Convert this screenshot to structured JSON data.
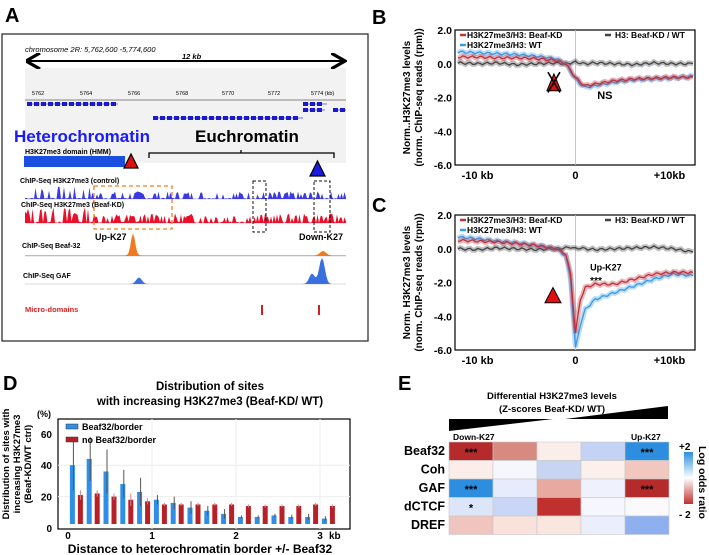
{
  "panels": {
    "a": "A",
    "b": "B",
    "c": "C",
    "d": "D",
    "e": "E"
  },
  "panel_a": {
    "region": "chromosome 2R: 5,762,600 -5,774,600",
    "span": "12 kb",
    "ticks": [
      "5762",
      "5764",
      "5766",
      "5768",
      "5770",
      "5772",
      "5774 (kb)"
    ],
    "heterochromatin": "Heterochromatin",
    "euchromatin": "Euchromatin",
    "domain_track": "H3K27me3 domain (HMM)",
    "tracks": [
      "ChIP-Seq H3K27me3 (control)",
      "ChIP-Seq H3K27me3 (Beaf-KD)",
      "ChIP-Seq Beaf-32",
      "ChIP-Seq GAF"
    ],
    "up_label": "Up-K27",
    "down_label": "Down-K27",
    "micro_domains": "Micro-domains",
    "colors": {
      "heterochromatin": "#1a1aff",
      "control": "#3a3ae0",
      "beaf_kd": "#e8102a",
      "beaf32": "#f07a20",
      "gaf": "#3a6fe0",
      "micro": "#e02020"
    }
  },
  "chart_data": [
    {
      "id": "B",
      "type": "line",
      "ylabel_1": "Norm..H3K27me3 levels",
      "ylabel_2": "(norm. ChIP-seq reads (rpm))",
      "yticks": [
        "2.0",
        "0.0",
        "-2.0",
        "-4.0",
        "-6.0"
      ],
      "ylim": [
        -6,
        2
      ],
      "xticks": [
        "-10 kb",
        "0",
        "+10kb"
      ],
      "xlim": [
        -12.3,
        12.2
      ],
      "annotation": "NS",
      "x": [
        -12,
        -10,
        -8,
        -6,
        -4,
        -2,
        -1,
        0,
        0.5,
        1,
        2,
        4,
        6,
        8,
        10,
        12
      ],
      "series": [
        {
          "name": "H3K27me3/H3: Beaf-KD",
          "color": "#c0303a",
          "values": [
            0.4,
            0.4,
            0.35,
            0.35,
            0.3,
            0.2,
            0,
            -0.8,
            -1.1,
            -1.3,
            -1.2,
            -1.0,
            -0.9,
            -0.85,
            -0.8,
            -0.8
          ]
        },
        {
          "name": "H3K27me3/H3: WT",
          "color": "#3a9ae8",
          "values": [
            0.7,
            0.65,
            0.6,
            0.55,
            0.45,
            0.3,
            0,
            -0.9,
            -1.2,
            -1.4,
            -1.3,
            -1.1,
            -0.95,
            -0.9,
            -0.85,
            -0.75
          ]
        },
        {
          "name": "H3: Beaf-KD / WT",
          "color": "#444444",
          "values": [
            0.05,
            0.0,
            0.05,
            -0.05,
            0.0,
            0.05,
            0.0,
            0.1,
            0.05,
            0.0,
            0.05,
            0.0,
            -0.05,
            0.05,
            0.0,
            0.0
          ]
        }
      ]
    },
    {
      "id": "C",
      "type": "line",
      "ylabel_1": "Norm. H3K27me3 levels",
      "ylabel_2": "(norm. ChIP-seq reads (rpm))",
      "yticks": [
        "2.0",
        "0.0",
        "-2.0",
        "-4.0",
        "-6.0"
      ],
      "ylim": [
        -6,
        2
      ],
      "xticks": [
        "-10 kb",
        "0",
        "+10kb"
      ],
      "xlim": [
        -12.3,
        12.2
      ],
      "annotation": "Up-K27",
      "significance": "***",
      "x": [
        -12,
        -10,
        -8,
        -6,
        -4,
        -2,
        -1,
        -0.5,
        0,
        0.5,
        1,
        2,
        4,
        6,
        8,
        10,
        12
      ],
      "series": [
        {
          "name": "H3K27me3/H3: Beaf-KD",
          "color": "#c0303a",
          "values": [
            0.5,
            0.45,
            0.4,
            0.3,
            0.2,
            0.0,
            -0.3,
            -1.5,
            -5.0,
            -3.0,
            -2.3,
            -2.1,
            -2.1,
            -1.8,
            -1.5,
            -1.4,
            -1.4
          ]
        },
        {
          "name": "H3K27me3/H3: WT",
          "color": "#3a9ae8",
          "values": [
            0.7,
            0.6,
            0.45,
            0.35,
            0.2,
            0.0,
            -0.4,
            -1.8,
            -5.9,
            -4.5,
            -3.6,
            -3.0,
            -2.6,
            -2.2,
            -1.8,
            -1.5,
            -1.6
          ]
        },
        {
          "name": "H3: Beaf-KD / WT",
          "color": "#444444",
          "values": [
            0.0,
            -0.05,
            0.05,
            0.0,
            -0.05,
            0.0,
            0.05,
            0.1,
            0.0,
            0.05,
            0.0,
            -0.05,
            0.0,
            0.05,
            0.1,
            0.0,
            -0.2
          ]
        }
      ]
    },
    {
      "id": "D",
      "type": "bar",
      "title_1": "Distribution of sites",
      "title_2": "with increasing H3K27me3  (Beaf-KD/ WT)",
      "ylabel_1": "Distribution of sites with",
      "ylabel_2": "increasing H3K27me3",
      "ylabel_3": "(Beaf-KD/WT ctrl)",
      "yunit": "(%)",
      "yticks": [
        "0",
        "20",
        "40",
        "60"
      ],
      "ylim": [
        0,
        70
      ],
      "xlabel": "Distance to heterochromatin border +/- Beaf32",
      "xticks": [
        "0",
        "1",
        "2",
        "3"
      ],
      "xunit": "kb",
      "xlim": [
        -0.1,
        3.4
      ],
      "x": [
        0.1,
        0.3,
        0.5,
        0.7,
        0.9,
        1.1,
        1.3,
        1.5,
        1.7,
        1.9,
        2.1,
        2.3,
        2.5,
        2.7,
        2.9,
        3.1
      ],
      "series": [
        {
          "name": "Beaf32/border",
          "color": "#2f8fe8",
          "values": [
            40,
            44,
            36,
            28,
            23,
            18,
            16,
            13,
            11,
            9,
            7,
            7,
            8,
            7,
            7,
            6
          ],
          "errors": [
            16,
            14,
            14,
            9,
            9,
            3,
            4,
            4,
            3,
            3,
            1,
            1,
            1,
            1.5,
            2,
            1.5
          ]
        },
        {
          "name": "no Beaf32/border",
          "color": "#b82028",
          "values": [
            21,
            22,
            20,
            18,
            17,
            15,
            15,
            15,
            15,
            15,
            14,
            14,
            14,
            14,
            15,
            14
          ],
          "errors": [
            3,
            2,
            2,
            4,
            2,
            1,
            1,
            1,
            1,
            1,
            1,
            1,
            1,
            1,
            1,
            1
          ]
        }
      ]
    },
    {
      "id": "E",
      "type": "heatmap",
      "title_1": "Differential H3K27me3 levels",
      "title_2": "(Z-scores Beaf-KD/ WT)",
      "col_left": "Down-K27",
      "col_right": "Up-K27",
      "rows": [
        "Beaf32",
        "Coh",
        "GAF",
        "dCTCF",
        "DREF"
      ],
      "colorbar_label": "Log odds ratio",
      "colorbar_max": "+2",
      "colorbar_min": "- 2",
      "cells": [
        [
          {
            "c": "#b52a2a",
            "s": "***"
          },
          {
            "c": "#d98a80",
            "s": ""
          },
          {
            "c": "#fbeeea",
            "s": ""
          },
          {
            "c": "#c4d2f5",
            "s": ""
          },
          {
            "c": "#2d8ee0",
            "s": "***"
          }
        ],
        [
          {
            "c": "#fbeeea",
            "s": ""
          },
          {
            "c": "#f5f7fd",
            "s": ""
          },
          {
            "c": "#c7d5f3",
            "s": ""
          },
          {
            "c": "#fcf0ec",
            "s": ""
          },
          {
            "c": "#f2c7c0",
            "s": ""
          }
        ],
        [
          {
            "c": "#2d8ee0",
            "s": "***"
          },
          {
            "c": "#e6ecfb",
            "s": ""
          },
          {
            "c": "#e8a9a0",
            "s": ""
          },
          {
            "c": "#eff2fc",
            "s": ""
          },
          {
            "c": "#b52a2a",
            "s": "***"
          }
        ],
        [
          {
            "c": "#dde5f9",
            "s": "*"
          },
          {
            "c": "#c9d6f5",
            "s": ""
          },
          {
            "c": "#c0302e",
            "s": ""
          },
          {
            "c": "#f6f7fd",
            "s": ""
          },
          {
            "c": "#fafafd",
            "s": ""
          }
        ],
        [
          {
            "c": "#f1c5bf",
            "s": ""
          },
          {
            "c": "#f9e1dc",
            "s": ""
          },
          {
            "c": "#fae6de",
            "s": ""
          },
          {
            "c": "#eaeffb",
            "s": ""
          },
          {
            "c": "#8fb0ef",
            "s": ""
          }
        ]
      ]
    }
  ]
}
